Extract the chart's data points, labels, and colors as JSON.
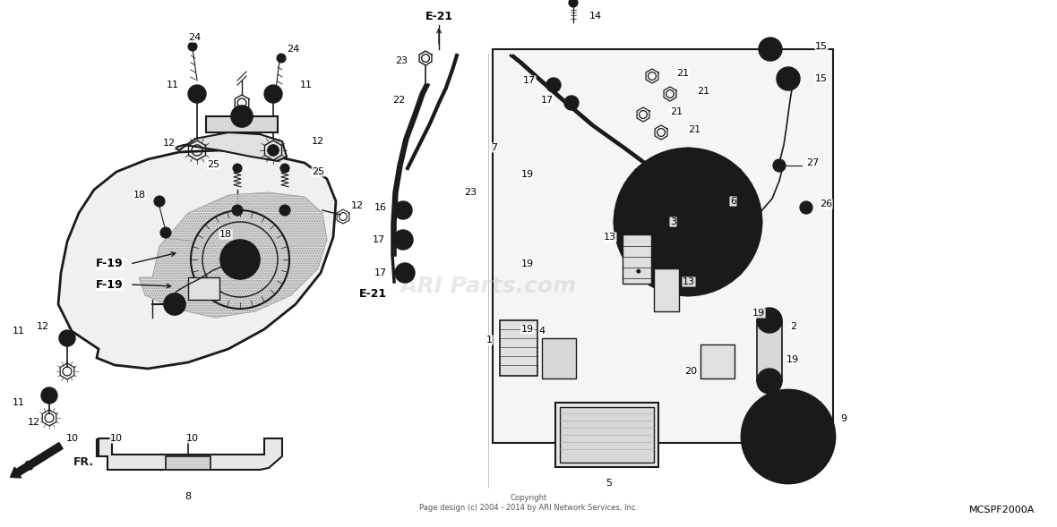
{
  "background_color": "#ffffff",
  "diagram_color": "#1a1a1a",
  "label_color": "#000000",
  "copyright_text": "Copyright\nPage design (c) 2004 - 2014 by ARI Network Services, Inc.",
  "part_code": "MCSPF2000A",
  "watermark": "ARI Parts.com",
  "figsize": [
    11.8,
    5.89
  ],
  "dpi": 100
}
